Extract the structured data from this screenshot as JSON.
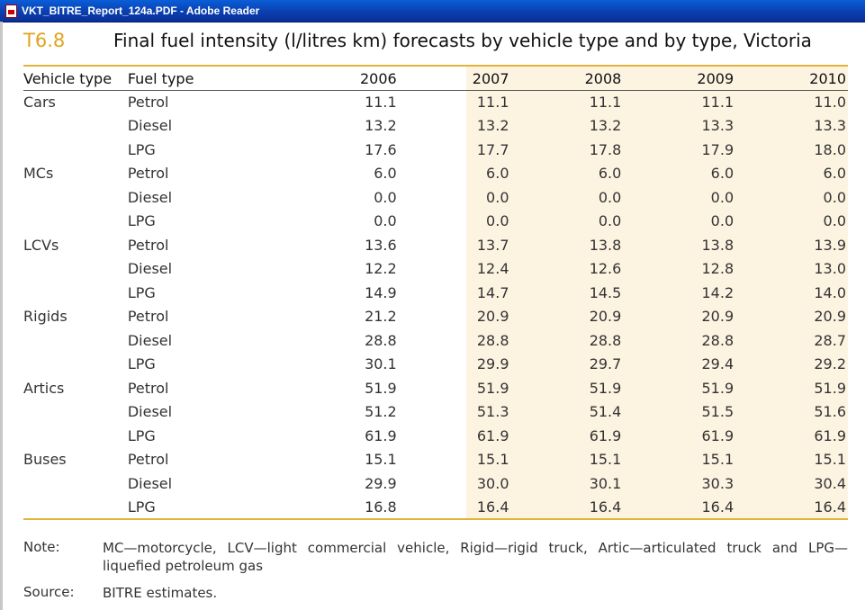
{
  "window": {
    "title": "VKT_BITRE_Report_124a.PDF - Adobe Reader"
  },
  "table": {
    "number": "T6.8",
    "title": "Final fuel intensity (l/litres km) forecasts by vehicle type and by type, Victoria",
    "headers": [
      "Vehicle type",
      "Fuel type",
      "2006",
      "2007",
      "2008",
      "2009",
      "2010"
    ],
    "rows": [
      {
        "vehicle": "Cars",
        "fuel": "Petrol",
        "values": [
          "11.1",
          "11.1",
          "11.1",
          "11.1",
          "11.0"
        ]
      },
      {
        "vehicle": "",
        "fuel": "Diesel",
        "values": [
          "13.2",
          "13.2",
          "13.2",
          "13.3",
          "13.3"
        ]
      },
      {
        "vehicle": "",
        "fuel": "LPG",
        "values": [
          "17.6",
          "17.7",
          "17.8",
          "17.9",
          "18.0"
        ]
      },
      {
        "vehicle": "MCs",
        "fuel": "Petrol",
        "values": [
          "6.0",
          "6.0",
          "6.0",
          "6.0",
          "6.0"
        ]
      },
      {
        "vehicle": "",
        "fuel": "Diesel",
        "values": [
          "0.0",
          "0.0",
          "0.0",
          "0.0",
          "0.0"
        ]
      },
      {
        "vehicle": "",
        "fuel": "LPG",
        "values": [
          "0.0",
          "0.0",
          "0.0",
          "0.0",
          "0.0"
        ]
      },
      {
        "vehicle": "LCVs",
        "fuel": "Petrol",
        "values": [
          "13.6",
          "13.7",
          "13.8",
          "13.8",
          "13.9"
        ]
      },
      {
        "vehicle": "",
        "fuel": "Diesel",
        "values": [
          "12.2",
          "12.4",
          "12.6",
          "12.8",
          "13.0"
        ]
      },
      {
        "vehicle": "",
        "fuel": "LPG",
        "values": [
          "14.9",
          "14.7",
          "14.5",
          "14.2",
          "14.0"
        ]
      },
      {
        "vehicle": "Rigids",
        "fuel": "Petrol",
        "values": [
          "21.2",
          "20.9",
          "20.9",
          "20.9",
          "20.9"
        ]
      },
      {
        "vehicle": "",
        "fuel": "Diesel",
        "values": [
          "28.8",
          "28.8",
          "28.8",
          "28.8",
          "28.7"
        ]
      },
      {
        "vehicle": "",
        "fuel": "LPG",
        "values": [
          "30.1",
          "29.9",
          "29.7",
          "29.4",
          "29.2"
        ]
      },
      {
        "vehicle": "Artics",
        "fuel": "Petrol",
        "values": [
          "51.9",
          "51.9",
          "51.9",
          "51.9",
          "51.9"
        ]
      },
      {
        "vehicle": "",
        "fuel": "Diesel",
        "values": [
          "51.2",
          "51.3",
          "51.4",
          "51.5",
          "51.6"
        ]
      },
      {
        "vehicle": "",
        "fuel": "LPG",
        "values": [
          "61.9",
          "61.9",
          "61.9",
          "61.9",
          "61.9"
        ]
      },
      {
        "vehicle": "Buses",
        "fuel": "Petrol",
        "values": [
          "15.1",
          "15.1",
          "15.1",
          "15.1",
          "15.1"
        ]
      },
      {
        "vehicle": "",
        "fuel": "Diesel",
        "values": [
          "29.9",
          "30.0",
          "30.1",
          "30.3",
          "30.4"
        ]
      },
      {
        "vehicle": "",
        "fuel": "LPG",
        "values": [
          "16.8",
          "16.4",
          "16.4",
          "16.4",
          "16.4"
        ]
      }
    ]
  },
  "notes": {
    "note_label": "Note:",
    "note_text": "MC—motorcycle, LCV—light commercial vehicle, Rigid—rigid truck, Artic—articulated truck and LPG—liquefied petroleum gas",
    "source_label": "Source:",
    "source_text": "BITRE estimates."
  },
  "colors": {
    "accent": "#e3b23c",
    "number_color": "#e0a41d",
    "shade": "#fdf3e1",
    "titlebar": "#0a3fb0"
  }
}
